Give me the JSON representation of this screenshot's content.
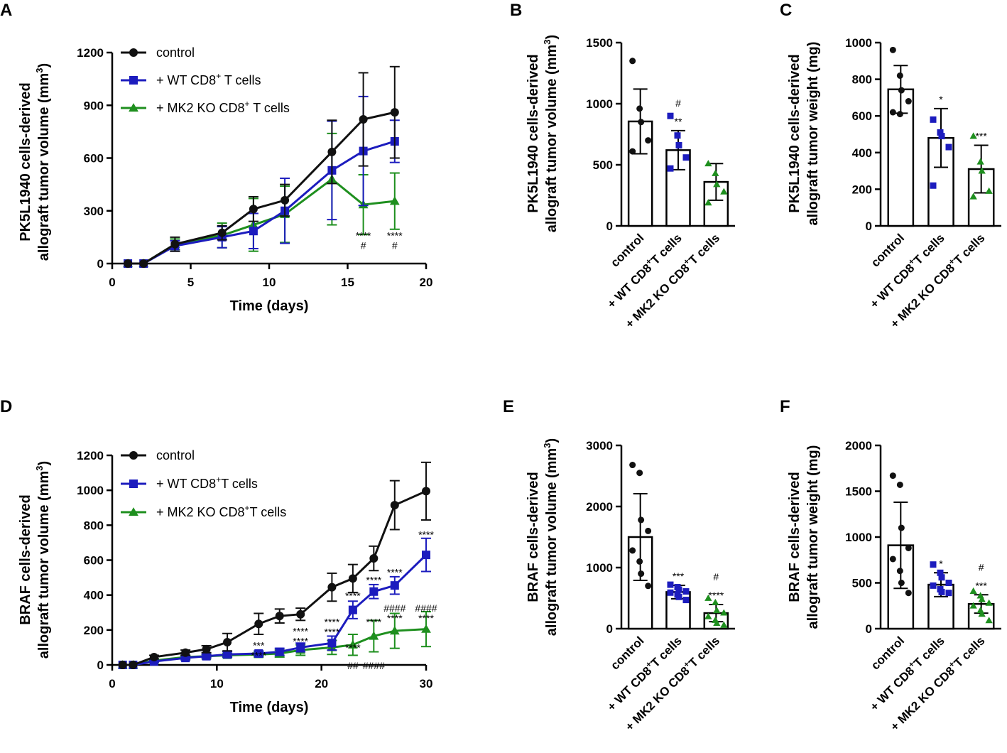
{
  "colors": {
    "control": "#111111",
    "wt": "#1c1cbe",
    "ko": "#1e8f1e"
  },
  "chart_data": [
    {
      "panel": "A",
      "type": "line",
      "xlabel": "Time (days)",
      "ylabel_line1": "PK5L1940 cells-derived",
      "ylabel_line2": "allograft tumor volume (mm",
      "ylabel_sup": "3",
      "ylabel_end": ")",
      "xlim": [
        0,
        20
      ],
      "ylim": [
        0,
        1200
      ],
      "xticks": [
        0,
        5,
        10,
        15,
        20
      ],
      "yticks": [
        0,
        300,
        600,
        900,
        1200
      ],
      "series": [
        {
          "name": "control",
          "name_sup": "",
          "name_end": "",
          "key": "control",
          "marker": "circle",
          "x": [
            1,
            2,
            4,
            7,
            9,
            11,
            14,
            16,
            18
          ],
          "y": [
            0,
            0,
            110,
            175,
            310,
            360,
            635,
            820,
            860
          ],
          "err": [
            0,
            0,
            40,
            40,
            70,
            90,
            180,
            265,
            260
          ]
        },
        {
          "name": "+ WT CD8",
          "name_sup": "+",
          "name_end": " T cells",
          "key": "wt",
          "marker": "square",
          "x": [
            1,
            2,
            4,
            7,
            9,
            11,
            14,
            16,
            18
          ],
          "y": [
            0,
            0,
            100,
            150,
            185,
            300,
            530,
            640,
            695
          ],
          "err": [
            0,
            0,
            30,
            60,
            100,
            185,
            280,
            310,
            120
          ]
        },
        {
          "name": "+ MK2 KO CD8",
          "name_sup": "+",
          "name_end": " T cells",
          "key": "ko",
          "marker": "triangle",
          "x": [
            1,
            2,
            4,
            7,
            9,
            11,
            14,
            16,
            18
          ],
          "y": [
            0,
            0,
            110,
            160,
            220,
            280,
            480,
            335,
            355
          ],
          "err": [
            0,
            0,
            30,
            70,
            150,
            160,
            260,
            170,
            160
          ]
        }
      ],
      "annotations": [
        {
          "x": 16,
          "y": 140,
          "lines": [
            "****",
            "#"
          ]
        },
        {
          "x": 18,
          "y": 140,
          "lines": [
            "****",
            "#"
          ]
        }
      ]
    },
    {
      "panel": "B",
      "type": "bar",
      "ylabel_line1": "PK5L1940 cells-derived",
      "ylabel_line2": "allograft tumor volume (mm",
      "ylabel_sup": "3",
      "ylabel_end": ")",
      "ylim": [
        0,
        1500
      ],
      "yticks": [
        0,
        500,
        1000,
        1500
      ],
      "categories": [
        {
          "a": "control",
          "sup": "",
          "b": ""
        },
        {
          "a": "+ WT CD8",
          "sup": "+",
          "b": "T cells"
        },
        {
          "a": "+ MK2 KO CD8",
          "sup": "+",
          "b": "T cells"
        }
      ],
      "keys": [
        "control",
        "wt",
        "ko"
      ],
      "values": [
        855,
        620,
        360
      ],
      "err": [
        265,
        160,
        150
      ],
      "points": [
        [
          1350,
          960,
          850,
          700,
          610
        ],
        [
          900,
          740,
          660,
          560,
          470
        ],
        [
          510,
          430,
          340,
          280,
          190
        ]
      ],
      "annotations": [
        [],
        [
          "#",
          "**"
        ],
        []
      ],
      "ann_index": 2
    },
    {
      "panel": "C",
      "type": "bar",
      "ylabel_line1": "PK5L1940 cells-derived",
      "ylabel_line2": "allograft tumor weight (mg)",
      "ylabel_sup": "",
      "ylabel_end": "",
      "ylim": [
        0,
        1000
      ],
      "yticks": [
        0,
        200,
        400,
        600,
        800,
        1000
      ],
      "categories": [
        {
          "a": "control",
          "sup": "",
          "b": ""
        },
        {
          "a": "+ WT CD8",
          "sup": "+",
          "b": "T cells"
        },
        {
          "a": "+ MK2 KO CD8",
          "sup": "+",
          "b": "T cells"
        }
      ],
      "keys": [
        "control",
        "wt",
        "ko"
      ],
      "values": [
        745,
        480,
        310
      ],
      "err": [
        130,
        160,
        130
      ],
      "points": [
        [
          960,
          820,
          740,
          680,
          620,
          610
        ],
        [
          580,
          510,
          490,
          430,
          220
        ],
        [
          490,
          350,
          300,
          190,
          160
        ]
      ],
      "annotations": [
        [],
        [
          "*"
        ],
        [
          "***"
        ]
      ]
    },
    {
      "panel": "D",
      "type": "line",
      "xlabel": "Time (days)",
      "ylabel_line1": "BRAF cells-derived",
      "ylabel_line2": "allograft tumor volume (mm",
      "ylabel_sup": "3",
      "ylabel_end": ")",
      "xlim": [
        0,
        30
      ],
      "ylim": [
        0,
        1200
      ],
      "xticks": [
        0,
        10,
        20,
        30
      ],
      "yticks": [
        0,
        200,
        400,
        600,
        800,
        1000,
        1200
      ],
      "series": [
        {
          "name": "control",
          "name_sup": "",
          "name_end": "",
          "key": "control",
          "marker": "circle",
          "x": [
            1,
            2,
            4,
            7,
            9,
            11,
            14,
            16,
            18,
            21,
            23,
            25,
            27,
            30
          ],
          "y": [
            0,
            0,
            45,
            70,
            90,
            130,
            235,
            280,
            290,
            445,
            495,
            610,
            915,
            995
          ],
          "err": [
            0,
            0,
            10,
            15,
            20,
            50,
            60,
            40,
            35,
            80,
            80,
            70,
            140,
            165
          ]
        },
        {
          "name": "+ WT CD8",
          "name_sup": "+",
          "name_end": "T cells",
          "key": "wt",
          "marker": "square",
          "x": [
            1,
            2,
            4,
            7,
            9,
            11,
            14,
            16,
            18,
            21,
            23,
            25,
            27,
            30
          ],
          "y": [
            0,
            0,
            20,
            40,
            50,
            60,
            65,
            75,
            100,
            125,
            315,
            420,
            455,
            630
          ],
          "err": [
            0,
            0,
            5,
            10,
            10,
            15,
            15,
            20,
            25,
            40,
            50,
            40,
            50,
            95
          ]
        },
        {
          "name": "+ MK2 KO CD8",
          "name_sup": "+",
          "name_end": "T cells",
          "key": "ko",
          "marker": "triangle",
          "x": [
            1,
            2,
            4,
            7,
            9,
            11,
            14,
            16,
            18,
            21,
            23,
            25,
            27,
            30
          ],
          "y": [
            0,
            0,
            25,
            45,
            50,
            55,
            60,
            65,
            85,
            100,
            115,
            165,
            195,
            205
          ],
          "err": [
            0,
            0,
            5,
            10,
            10,
            10,
            15,
            20,
            30,
            40,
            60,
            90,
            100,
            100
          ]
        }
      ],
      "annotations": [
        {
          "x": 14,
          "y": 92,
          "lines": [
            "***",
            "****"
          ]
        },
        {
          "x": 18,
          "y": 172,
          "lines": [
            "****",
            "****"
          ]
        },
        {
          "x": 21,
          "y": 226,
          "lines": [
            "****",
            "****"
          ]
        },
        {
          "x": 23,
          "y": 80,
          "lines": [
            "****"
          ]
        },
        {
          "x": 23,
          "y": 376,
          "lines": [
            "****"
          ]
        },
        {
          "x": 23,
          "y": -25,
          "lines": [
            "##"
          ]
        },
        {
          "x": 25,
          "y": 226,
          "lines": [
            "****"
          ]
        },
        {
          "x": 25,
          "y": 466,
          "lines": [
            "****"
          ]
        },
        {
          "x": 25,
          "y": -25,
          "lines": [
            "####"
          ]
        },
        {
          "x": 27,
          "y": 305,
          "lines": [
            "####",
            "****"
          ]
        },
        {
          "x": 27,
          "y": 510,
          "lines": [
            "****"
          ]
        },
        {
          "x": 30,
          "y": 305,
          "lines": [
            "####",
            "****"
          ]
        },
        {
          "x": 30,
          "y": 726,
          "lines": [
            "****"
          ]
        }
      ]
    },
    {
      "panel": "E",
      "type": "bar",
      "ylabel_line1": "BRAF cells-derived",
      "ylabel_line2": "allograft tumor volume (mm",
      "ylabel_sup": "3",
      "ylabel_end": ")",
      "ylim": [
        0,
        3000
      ],
      "yticks": [
        0,
        1000,
        2000,
        3000
      ],
      "categories": [
        {
          "a": "control",
          "sup": "",
          "b": ""
        },
        {
          "a": "+ WT CD8",
          "sup": "+",
          "b": "T cells"
        },
        {
          "a": "+ MK2 KO CD8",
          "sup": "+",
          "b": "T cells"
        }
      ],
      "keys": [
        "control",
        "wt",
        "ko"
      ],
      "values": [
        1500,
        600,
        255
      ],
      "err": [
        710,
        110,
        140
      ],
      "points": [
        [
          2680,
          2550,
          1780,
          1600,
          1280,
          1100,
          900,
          700
        ],
        [
          720,
          680,
          640,
          610,
          590,
          560,
          520,
          470
        ],
        [
          500,
          430,
          300,
          260,
          200,
          140,
          90,
          60
        ]
      ],
      "annotations": [
        [],
        [
          "***"
        ],
        [
          "#",
          "****"
        ]
      ]
    },
    {
      "panel": "F",
      "type": "bar",
      "ylabel_line1": "BRAF cells-derived",
      "ylabel_line2": "allograft tumor weight (mg)",
      "ylabel_sup": "",
      "ylabel_end": "",
      "ylim": [
        0,
        2000
      ],
      "yticks": [
        0,
        500,
        1000,
        1500,
        2000
      ],
      "categories": [
        {
          "a": "control",
          "sup": "",
          "b": ""
        },
        {
          "a": "+ WT CD8",
          "sup": "+",
          "b": "T cells"
        },
        {
          "a": "+ MK2 KO CD8",
          "sup": "+",
          "b": "T cells"
        }
      ],
      "keys": [
        "control",
        "wt",
        "ko"
      ],
      "values": [
        910,
        480,
        270
      ],
      "err": [
        470,
        130,
        100
      ],
      "points": [
        [
          1670,
          1570,
          1100,
          880,
          760,
          630,
          500,
          390
        ],
        [
          700,
          610,
          560,
          500,
          470,
          430,
          400,
          390
        ],
        [
          410,
          360,
          320,
          280,
          250,
          200,
          160,
          90
        ]
      ],
      "annotations": [
        [],
        [
          "*"
        ],
        [
          "#",
          "***"
        ]
      ]
    }
  ]
}
